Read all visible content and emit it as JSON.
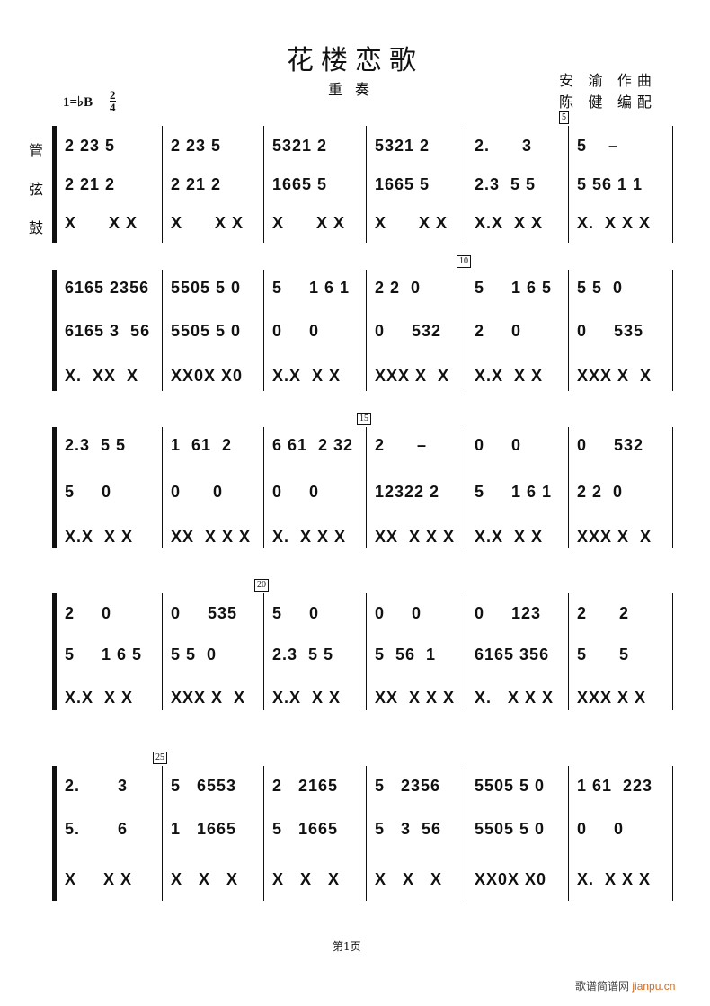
{
  "header": {
    "title": "花楼恋歌",
    "subtitle": "重奏",
    "composer": "安 渝 作曲",
    "arranger": "陈 健 编配",
    "key": "1=♭B",
    "time_top": "2",
    "time_bottom": "4"
  },
  "parts": [
    "管",
    "弦",
    "鼓"
  ],
  "systems": [
    {
      "rehearsal": {
        "measure": 5,
        "label": "5"
      },
      "rows": [
        [
          "2 23 5",
          "2 23 5",
          "5321 2",
          "5321 2",
          "2.      3",
          "5    –"
        ],
        [
          "2 21 2",
          "2 21 2",
          "1665 5",
          "1665 5",
          "2.3  5 5",
          "5 56 1 1"
        ],
        [
          "X      X X",
          "X      X X",
          "X      X X",
          "X      X X",
          "X.X  X X",
          "X.  X X X"
        ]
      ]
    },
    {
      "rehearsal": {
        "measure": 4,
        "label": "10"
      },
      "rows": [
        [
          "6165 2356",
          "5505 5 0",
          "5     1 6 1",
          "2 2  0",
          "5     1 6 5",
          "5 5  0"
        ],
        [
          "6165 3  56",
          "5505 5 0",
          "0     0",
          "0     532",
          "2     0",
          "0     535"
        ],
        [
          "X.  XX  X",
          "XX0X X0",
          "X.X  X X",
          "XXX X  X",
          "X.X  X X",
          "XXX X  X"
        ]
      ]
    },
    {
      "rehearsal": {
        "measure": 3,
        "label": "15"
      },
      "rows": [
        [
          "2.3  5 5",
          "1  61  2",
          "6 61  2 32",
          "2      –",
          "0     0",
          "0     532"
        ],
        [
          "5     0",
          "0      0",
          "0     0",
          "12322 2",
          "5     1 6 1",
          "2 2  0"
        ],
        [
          "X.X  X X",
          "XX  X X X",
          "X.  X X X",
          "XX  X X X",
          "X.X  X X",
          "XXX X  X"
        ]
      ]
    },
    {
      "rehearsal": {
        "measure": 2,
        "label": "20"
      },
      "rows": [
        [
          "2     0",
          "0     535",
          "5     0",
          "0     0",
          "0     123",
          "2      2"
        ],
        [
          "5     1 6 5",
          "5 5  0",
          "2.3  5 5",
          "5  56  1",
          "6165 356",
          "5      5"
        ],
        [
          "X.X  X X",
          "XXX X  X",
          "X.X  X X",
          "XX  X X X",
          "X.   X X X",
          "XXX X X"
        ]
      ]
    },
    {
      "rehearsal": {
        "measure": 1,
        "label": "25"
      },
      "rows": [
        [
          "2.       3",
          "5   6553",
          "2   2165",
          "5   2356",
          "5505 5 0",
          "1 61  223"
        ],
        [
          "5.       6",
          "1   1665",
          "5   1665",
          "5   3  56",
          "5505 5 0",
          "0     0"
        ],
        [
          "X     X X",
          "X   X   X",
          "X   X   X",
          "X   X   X",
          "XX0X X0",
          "X.  X X X"
        ]
      ]
    }
  ],
  "footer": {
    "page": "第1页",
    "watermark_cn": "歌谱简谱网",
    "watermark_en": "jianpu.cn"
  }
}
